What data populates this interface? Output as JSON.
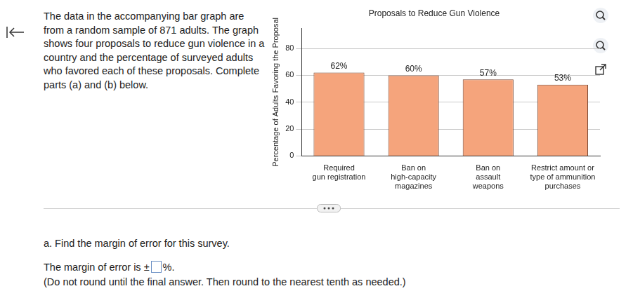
{
  "intro_lines": [
    "The data in the accompanying bar graph are",
    "from a random sample of 871 adults. The graph",
    "shows four proposals to reduce gun violence in a",
    "country and the percentage of surveyed adults",
    "who favored each of these proposals. Complete",
    "parts (a) and (b) below."
  ],
  "chart_data": {
    "type": "bar",
    "title": "Proposals to Reduce Gun Violence",
    "y_label": "Percentage of Adults Favoring the Proposal",
    "categories": [
      [
        "Required",
        "gun registration"
      ],
      [
        "Ban on",
        "high-capacity",
        "magazines"
      ],
      [
        "Ban on",
        "assault",
        "weapons"
      ],
      [
        "Restrict amount or",
        "type of ammunition",
        "purchases"
      ]
    ],
    "values": [
      62,
      60,
      57,
      53
    ],
    "value_labels": [
      "62%",
      "60%",
      "57%",
      "53%"
    ],
    "data_labels": true,
    "color": "#f5a47c",
    "ylim": [
      0,
      95
    ],
    "yticks": [
      0,
      20,
      40,
      60,
      80
    ],
    "grid": true
  },
  "question": "a. Find the margin of error for this survey.",
  "answer_prefix": "The margin of error is ±",
  "answer_suffix": "%.",
  "note": "(Do not round until the final answer. Then round to the nearest tenth as needed.)"
}
